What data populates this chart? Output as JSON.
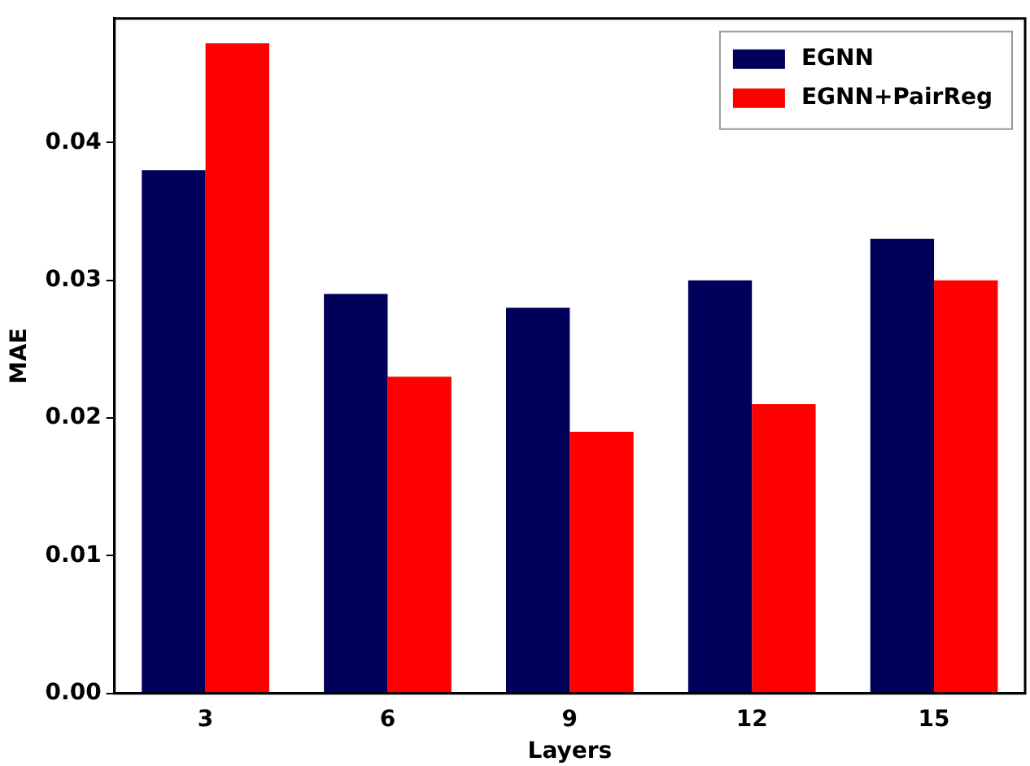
{
  "chart_data": {
    "type": "bar",
    "xlabel": "Layers",
    "ylabel": "MAE",
    "categories": [
      "3",
      "6",
      "9",
      "12",
      "15"
    ],
    "series": [
      {
        "name": "EGNN",
        "color": "#00005a",
        "values": [
          0.038,
          0.029,
          0.028,
          0.03,
          0.033
        ]
      },
      {
        "name": "EGNN+PairReg",
        "color": "#ff0000",
        "values": [
          0.0472,
          0.023,
          0.019,
          0.021,
          0.03
        ]
      }
    ],
    "ylim": [
      0,
      0.049
    ],
    "yticks": [
      {
        "value": 0,
        "label": "0.00"
      },
      {
        "value": 0.01,
        "label": "0.01"
      },
      {
        "value": 0.02,
        "label": "0.02"
      },
      {
        "value": 0.03,
        "label": "0.03"
      },
      {
        "value": 0.04,
        "label": "0.04"
      }
    ],
    "grid": false,
    "legend": "top right"
  }
}
